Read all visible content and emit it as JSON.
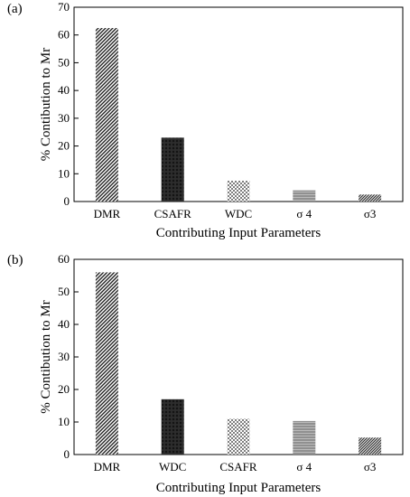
{
  "chart_data": [
    {
      "type": "bar",
      "panel_label": "(a)",
      "categories": [
        "DMR",
        "CSAFR",
        "WDC",
        "σ 4",
        "σ3"
      ],
      "values": [
        62.5,
        23,
        7.5,
        4,
        2.5
      ],
      "patterns": [
        "diag-dense",
        "diag-cross-dark",
        "dots",
        "horiz-lines",
        "diag-fine"
      ],
      "xlabel": "Contributing Input Parameters",
      "ylabel": "% Contibution to Mr",
      "ylim": [
        0,
        70
      ],
      "yticks": [
        0,
        10,
        20,
        30,
        40,
        50,
        60,
        70
      ],
      "grid": false,
      "legend": "none"
    },
    {
      "type": "bar",
      "panel_label": "(b)",
      "categories": [
        "DMR",
        "WDC",
        "CSAFR",
        "σ 4",
        "σ3"
      ],
      "values": [
        56,
        17,
        11,
        10.3,
        5.2
      ],
      "patterns": [
        "diag-dense",
        "diag-cross-dark",
        "dots",
        "horiz-lines",
        "diag-fine"
      ],
      "xlabel": "Contributing Input Parameters",
      "ylabel": "% Contibution to Mr",
      "ylim": [
        0,
        60
      ],
      "yticks": [
        0,
        10,
        20,
        30,
        40,
        50,
        60
      ],
      "grid": false,
      "legend": "none"
    }
  ]
}
